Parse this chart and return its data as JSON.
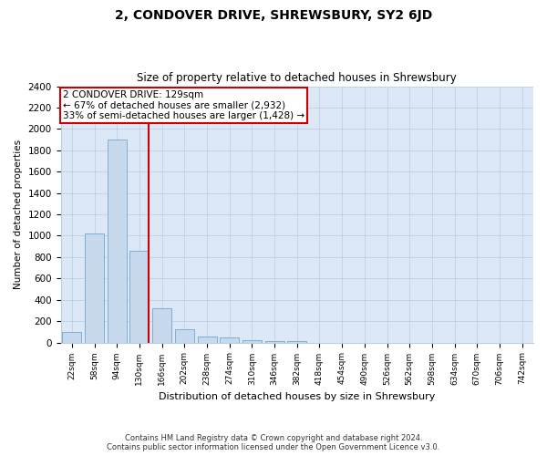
{
  "title": "2, CONDOVER DRIVE, SHREWSBURY, SY2 6JD",
  "subtitle": "Size of property relative to detached houses in Shrewsbury",
  "xlabel": "Distribution of detached houses by size in Shrewsbury",
  "ylabel": "Number of detached properties",
  "bar_labels": [
    "22sqm",
    "58sqm",
    "94sqm",
    "130sqm",
    "166sqm",
    "202sqm",
    "238sqm",
    "274sqm",
    "310sqm",
    "346sqm",
    "382sqm",
    "418sqm",
    "454sqm",
    "490sqm",
    "526sqm",
    "562sqm",
    "598sqm",
    "634sqm",
    "670sqm",
    "706sqm",
    "742sqm"
  ],
  "bar_values": [
    100,
    1020,
    1900,
    860,
    320,
    125,
    55,
    45,
    25,
    15,
    10,
    0,
    0,
    0,
    0,
    0,
    0,
    0,
    0,
    0,
    0
  ],
  "bar_color": "#c8d9ed",
  "bar_edge_color": "#7aafd4",
  "highlight_bar_index": 3,
  "highlight_color": "#cc0000",
  "ylim": [
    0,
    2400
  ],
  "yticks": [
    0,
    200,
    400,
    600,
    800,
    1000,
    1200,
    1400,
    1600,
    1800,
    2000,
    2200,
    2400
  ],
  "annotation_title": "2 CONDOVER DRIVE: 129sqm",
  "annotation_line1": "← 67% of detached houses are smaller (2,932)",
  "annotation_line2": "33% of semi-detached houses are larger (1,428) →",
  "footer_line1": "Contains HM Land Registry data © Crown copyright and database right 2024.",
  "footer_line2": "Contains public sector information licensed under the Open Government Licence v3.0.",
  "bg_color": "#ffffff",
  "plot_bg_color": "#dce8f5",
  "grid_color": "#b8cde0"
}
